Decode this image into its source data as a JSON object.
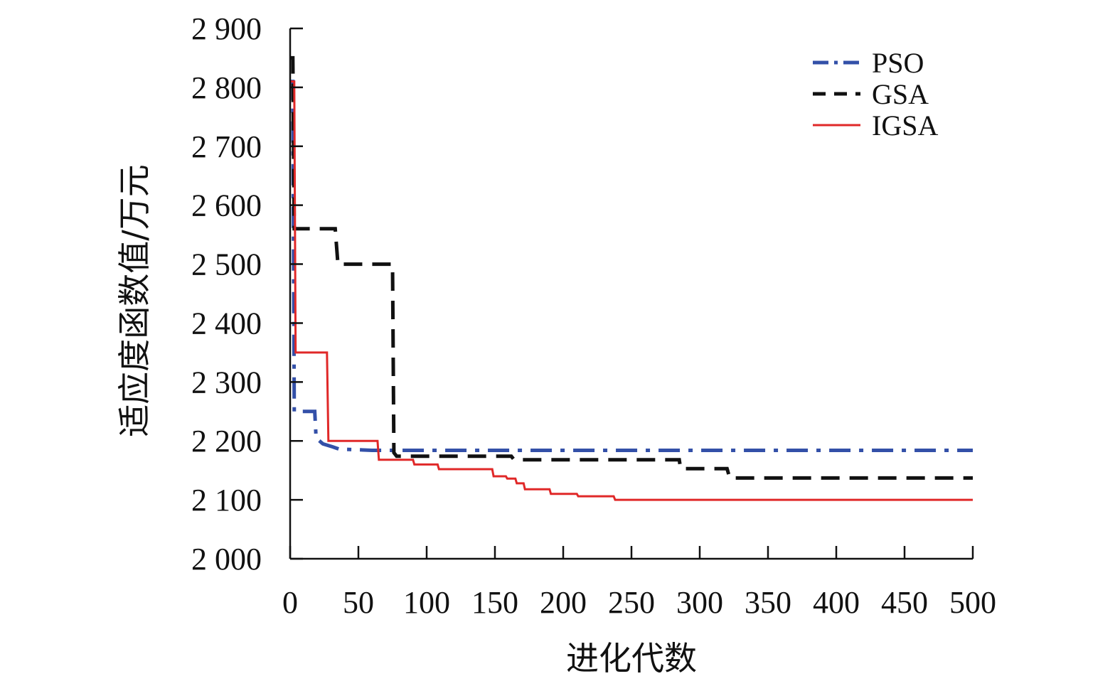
{
  "chart_data": {
    "type": "line",
    "title": "",
    "xlabel": "进化代数",
    "ylabel": "适应度函数值/万元",
    "xlim": [
      0,
      500
    ],
    "ylim": [
      2000,
      2900
    ],
    "xticks": [
      0,
      50,
      100,
      150,
      200,
      250,
      300,
      350,
      400,
      450,
      500
    ],
    "yticks": [
      2000,
      2100,
      2200,
      2300,
      2400,
      2500,
      2600,
      2700,
      2800,
      2900
    ],
    "xtick_labels": [
      "0",
      "50",
      "100",
      "150",
      "200",
      "250",
      "300",
      "350",
      "400",
      "450",
      "500"
    ],
    "ytick_labels": [
      "2 000",
      "2 100",
      "2 200",
      "2 300",
      "2 400",
      "2 500",
      "2 600",
      "2 700",
      "2 800",
      "2 900"
    ],
    "grid": false,
    "legend_position": "top-right",
    "series": [
      {
        "name": "PSO",
        "color": "#3350a8",
        "style": "dash-dot",
        "points": [
          [
            0,
            2810
          ],
          [
            2,
            2810
          ],
          [
            3,
            2250
          ],
          [
            18,
            2250
          ],
          [
            19,
            2205
          ],
          [
            24,
            2195
          ],
          [
            31,
            2190
          ],
          [
            36,
            2186
          ],
          [
            50,
            2185
          ],
          [
            60,
            2184
          ],
          [
            70,
            2184
          ],
          [
            500,
            2184
          ]
        ]
      },
      {
        "name": "GSA",
        "color": "#111111",
        "style": "dashed",
        "points": [
          [
            0,
            2850
          ],
          [
            2,
            2850
          ],
          [
            3,
            2560
          ],
          [
            33,
            2560
          ],
          [
            35,
            2500
          ],
          [
            75,
            2500
          ],
          [
            76,
            2180
          ],
          [
            78,
            2174
          ],
          [
            162,
            2174
          ],
          [
            164,
            2168
          ],
          [
            285,
            2168
          ],
          [
            286,
            2153
          ],
          [
            320,
            2153
          ],
          [
            322,
            2137
          ],
          [
            500,
            2137
          ]
        ]
      },
      {
        "name": "IGSA",
        "color": "#e02828",
        "style": "solid",
        "points": [
          [
            0,
            2810
          ],
          [
            3,
            2810
          ],
          [
            4,
            2350
          ],
          [
            27,
            2350
          ],
          [
            28,
            2200
          ],
          [
            64,
            2200
          ],
          [
            65,
            2168
          ],
          [
            90,
            2168
          ],
          [
            91,
            2160
          ],
          [
            108,
            2160
          ],
          [
            109,
            2152
          ],
          [
            148,
            2152
          ],
          [
            149,
            2140
          ],
          [
            158,
            2140
          ],
          [
            159,
            2136
          ],
          [
            165,
            2136
          ],
          [
            166,
            2128
          ],
          [
            171,
            2128
          ],
          [
            172,
            2118
          ],
          [
            190,
            2118
          ],
          [
            191,
            2110
          ],
          [
            210,
            2110
          ],
          [
            211,
            2106
          ],
          [
            237,
            2106
          ],
          [
            238,
            2100
          ],
          [
            500,
            2100
          ]
        ]
      }
    ]
  }
}
